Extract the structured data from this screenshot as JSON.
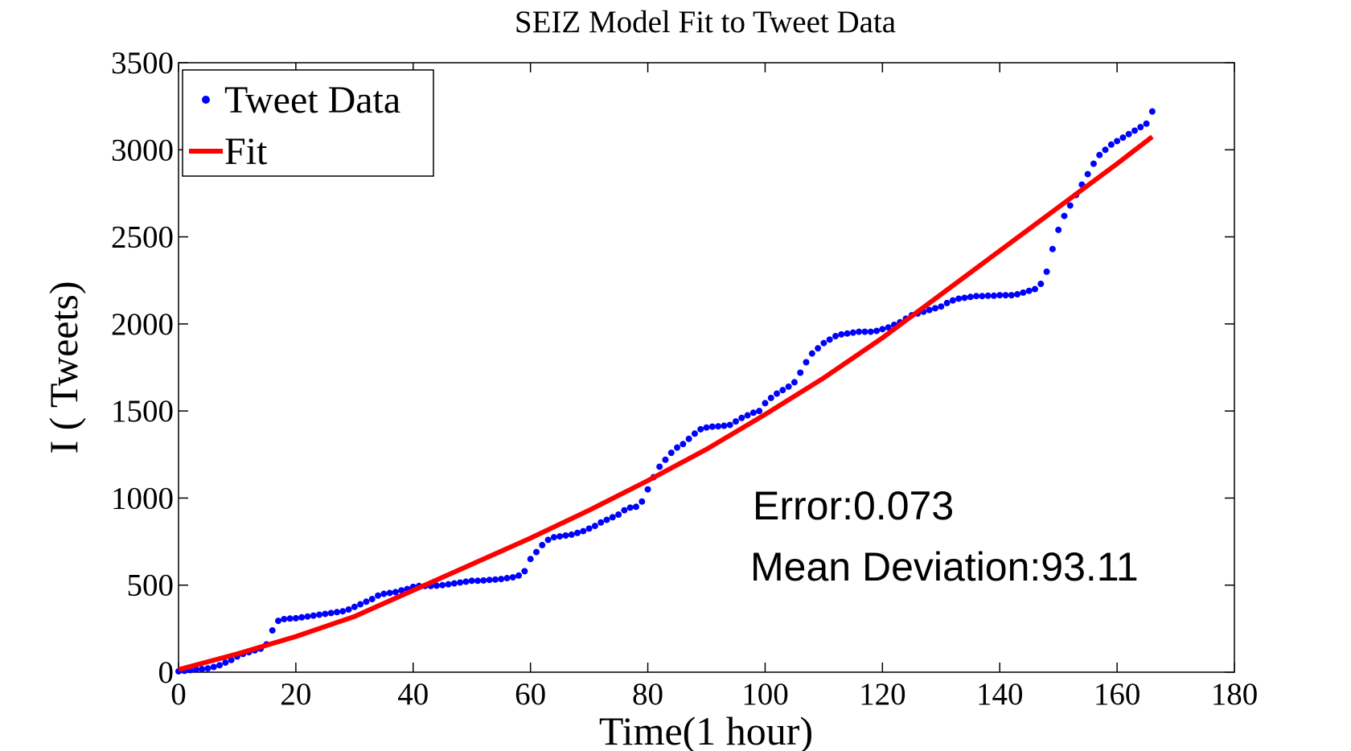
{
  "chart_data": {
    "type": "scatter",
    "title": "SEIZ Model Fit to Tweet Data",
    "x_label": "Time(1 hour)",
    "y_label": "I ( Tweets)",
    "xlim": [
      0,
      180
    ],
    "xticks": [
      0,
      20,
      40,
      60,
      80,
      100,
      120,
      140,
      160,
      180
    ],
    "ylim": [
      0,
      3500
    ],
    "yticks": [
      0,
      500,
      1000,
      1500,
      2000,
      2500,
      3000,
      3500
    ],
    "grid": false,
    "legend": "upper left",
    "annotations": [
      "Error:0.073",
      "Mean Deviation:93.11"
    ],
    "series": [
      {
        "name": "Tweet Data",
        "mode": "markers",
        "color": "#0000ff",
        "x": [
          0,
          1,
          2,
          3,
          4,
          5,
          6,
          7,
          8,
          9,
          10,
          11,
          12,
          13,
          14,
          15,
          16,
          17,
          18,
          19,
          20,
          21,
          22,
          23,
          24,
          25,
          26,
          27,
          28,
          29,
          30,
          31,
          32,
          33,
          34,
          35,
          36,
          37,
          38,
          39,
          40,
          41,
          42,
          43,
          44,
          45,
          46,
          47,
          48,
          49,
          50,
          51,
          52,
          53,
          54,
          55,
          56,
          57,
          58,
          59,
          60,
          61,
          62,
          63,
          64,
          65,
          66,
          67,
          68,
          69,
          70,
          71,
          72,
          73,
          74,
          75,
          76,
          77,
          78,
          79,
          80,
          81,
          82,
          83,
          84,
          85,
          86,
          87,
          88,
          89,
          90,
          91,
          92,
          93,
          94,
          95,
          96,
          97,
          98,
          99,
          100,
          101,
          102,
          103,
          104,
          105,
          106,
          107,
          108,
          109,
          110,
          111,
          112,
          113,
          114,
          115,
          116,
          117,
          118,
          119,
          120,
          121,
          122,
          123,
          124,
          125,
          126,
          127,
          128,
          129,
          130,
          131,
          132,
          133,
          134,
          135,
          136,
          137,
          138,
          139,
          140,
          141,
          142,
          143,
          144,
          145,
          146,
          147,
          148,
          149,
          150,
          151,
          152,
          153,
          154,
          155,
          156,
          157,
          158,
          159,
          160,
          161,
          162,
          163,
          164,
          165,
          166
        ],
        "values": [
          5,
          8,
          12,
          15,
          18,
          22,
          30,
          40,
          55,
          70,
          90,
          105,
          115,
          125,
          135,
          160,
          240,
          295,
          305,
          308,
          310,
          315,
          320,
          325,
          330,
          335,
          340,
          345,
          350,
          360,
          375,
          390,
          405,
          420,
          440,
          450,
          455,
          460,
          470,
          478,
          490,
          495,
          495,
          495,
          497,
          500,
          505,
          510,
          515,
          520,
          525,
          525,
          527,
          530,
          532,
          535,
          540,
          545,
          555,
          580,
          650,
          690,
          730,
          760,
          775,
          780,
          785,
          790,
          800,
          810,
          825,
          840,
          860,
          875,
          890,
          905,
          930,
          945,
          950,
          980,
          1050,
          1120,
          1180,
          1220,
          1260,
          1290,
          1310,
          1340,
          1370,
          1395,
          1405,
          1410,
          1412,
          1415,
          1420,
          1440,
          1460,
          1475,
          1490,
          1500,
          1545,
          1575,
          1600,
          1620,
          1640,
          1665,
          1720,
          1780,
          1830,
          1860,
          1890,
          1910,
          1930,
          1940,
          1945,
          1950,
          1955,
          1955,
          1955,
          1960,
          1970,
          1980,
          1995,
          2010,
          2030,
          2050,
          2060,
          2070,
          2080,
          2090,
          2100,
          2120,
          2135,
          2145,
          2150,
          2155,
          2160,
          2160,
          2162,
          2162,
          2165,
          2165,
          2165,
          2170,
          2180,
          2190,
          2200,
          2230,
          2300,
          2430,
          2540,
          2620,
          2680,
          2740,
          2800,
          2860,
          2920,
          2970,
          3000,
          3030,
          3050,
          3070,
          3090,
          3110,
          3130,
          3150,
          3220
        ]
      },
      {
        "name": "Fit",
        "mode": "line",
        "color": "#ff0000",
        "x": [
          0,
          10,
          20,
          30,
          40,
          50,
          60,
          70,
          80,
          90,
          100,
          110,
          120,
          130,
          140,
          150,
          160,
          166
        ],
        "values": [
          15,
          105,
          205,
          320,
          470,
          620,
          770,
          930,
          1100,
          1280,
          1480,
          1690,
          1920,
          2170,
          2420,
          2670,
          2920,
          3075
        ]
      }
    ]
  }
}
